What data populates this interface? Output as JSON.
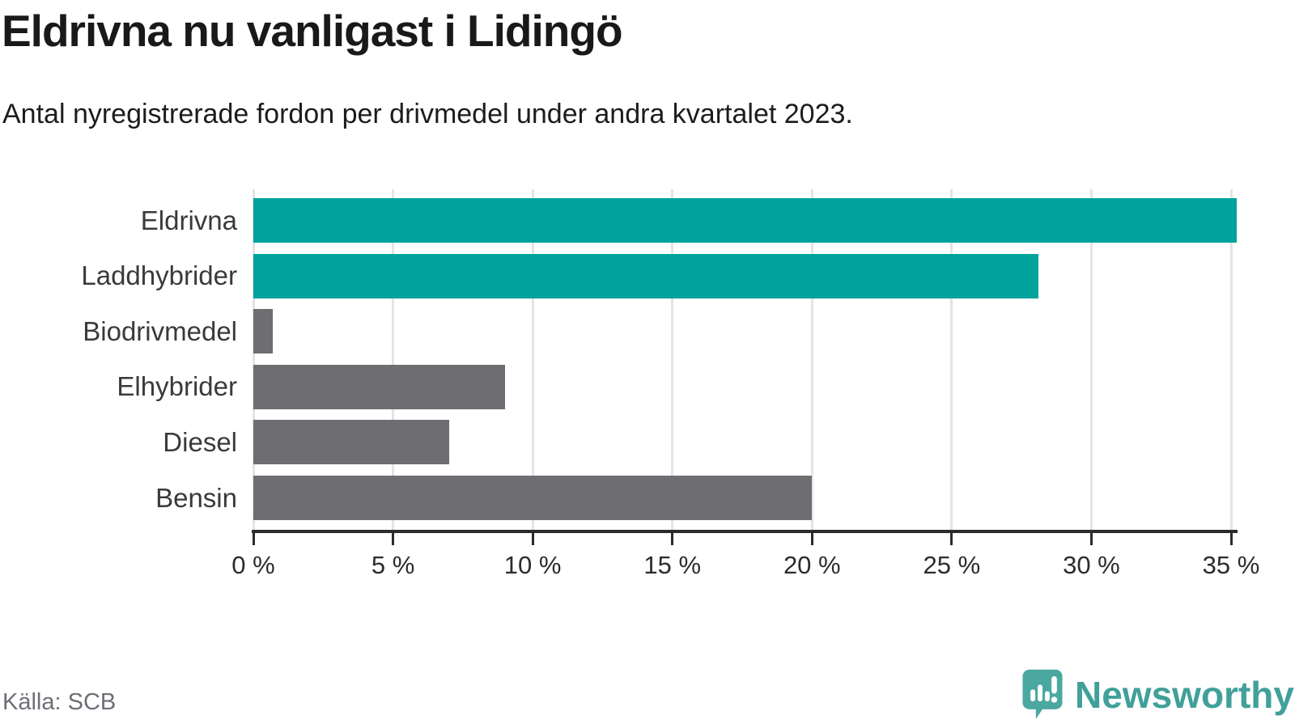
{
  "header": {
    "title": "Eldrivna nu vanligast i Lidingö",
    "subtitle": "Antal nyregistrerade fordon per drivmedel under andra kvartalet 2023."
  },
  "footer": {
    "source": "Källa: SCB",
    "brand_name": "Newsworthy"
  },
  "colors": {
    "highlight_bar": "#00a39b",
    "default_bar": "#6d6d72",
    "gridline": "#e4e4e6",
    "axis": "#2b2b2e",
    "brand_teal": "#4aa8a0",
    "brand_text": "#41a09a"
  },
  "chart_data": {
    "type": "bar",
    "orientation": "horizontal",
    "title": "Eldrivna nu vanligast i Lidingö",
    "subtitle": "Antal nyregistrerade fordon per drivmedel under andra kvartalet 2023.",
    "categories": [
      "Eldrivna",
      "Laddhybrider",
      "Biodrivmedel",
      "Elhybrider",
      "Diesel",
      "Bensin"
    ],
    "values": [
      35.2,
      28.1,
      0.7,
      9.0,
      7.0,
      20.0
    ],
    "unit": "%",
    "highlighted": [
      true,
      true,
      false,
      false,
      false,
      false
    ],
    "xlabel": "",
    "ylabel": "",
    "xlim": [
      0,
      35
    ],
    "xticks": [
      0,
      5,
      10,
      15,
      20,
      25,
      30,
      35
    ],
    "xtick_labels": [
      "0 %",
      "5 %",
      "10 %",
      "15 %",
      "20 %",
      "25 %",
      "30 %",
      "35 %"
    ],
    "grid": "vertical",
    "legend": "none",
    "source": "Källa: SCB"
  }
}
